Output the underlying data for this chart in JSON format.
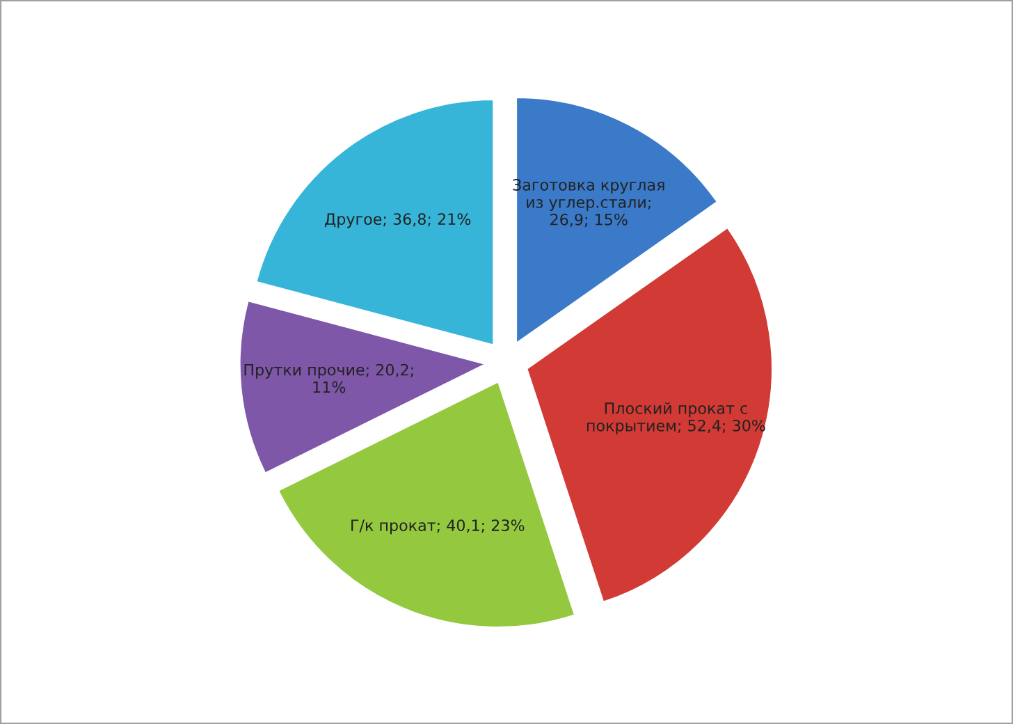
{
  "chart_data": {
    "type": "pie",
    "categories": [
      "Заготовка круглая\nиз углер.стали;\n26,9; 15%",
      "Плоский прокат с\nпокрытием; 52,4; 30%",
      "Г/к прокат; 40,1; 23%",
      "Прутки прочие; 20,2;\n11%",
      "Другое; 36,8; 21%"
    ],
    "values": [
      26.9,
      52.4,
      40.1,
      20.2,
      36.8
    ],
    "colors": [
      "#3b7ac8",
      "#d23a35",
      "#93c83f",
      "#7e57a8",
      "#36b5d9"
    ]
  }
}
